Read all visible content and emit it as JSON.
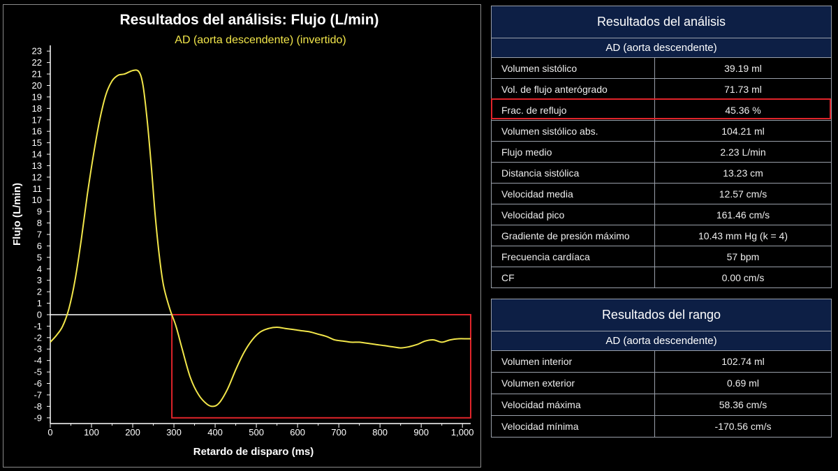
{
  "chart_data": {
    "type": "line",
    "title": "Resultados del análisis: Flujo (L/min)",
    "subtitle": "AD (aorta descendente) (invertido)",
    "xlabel": "Retardo de disparo (ms)",
    "ylabel": "Flujo (L/min)",
    "xlim": [
      0,
      1020
    ],
    "ylim": [
      -9.5,
      23.5
    ],
    "x_ticks": [
      0,
      100,
      200,
      300,
      400,
      500,
      600,
      700,
      800,
      900,
      1000
    ],
    "x_tick_labels": [
      "0",
      "100",
      "200",
      "300",
      "400",
      "500",
      "600",
      "700",
      "800",
      "900",
      "1,000"
    ],
    "y_ticks": [
      -9,
      -8,
      -7,
      -6,
      -5,
      -4,
      -3,
      -2,
      -1,
      0,
      1,
      2,
      3,
      4,
      5,
      6,
      7,
      8,
      9,
      10,
      11,
      12,
      13,
      14,
      15,
      16,
      17,
      18,
      19,
      20,
      21,
      22,
      23
    ],
    "y_tick_labels": [
      "-9",
      "-8",
      "-7",
      "-6",
      "-5",
      "-4",
      "-3",
      "-2",
      "-1",
      "0",
      "1",
      "2",
      "3",
      "4",
      "5",
      "6",
      "7",
      "8",
      "9",
      "10",
      "11",
      "12",
      "13",
      "14",
      "15",
      "16",
      "17",
      "18",
      "19",
      "20",
      "21",
      "22",
      "23"
    ],
    "baseline": {
      "x": [
        0,
        295
      ],
      "y": 0,
      "color": "#ffffff"
    },
    "highlight_box": {
      "x": [
        295,
        1020
      ],
      "y": [
        -9,
        0
      ],
      "color": "#e0242a"
    },
    "series": [
      {
        "color": "#f2e64a",
        "x": [
          0,
          15,
          30,
          45,
          60,
          75,
          90,
          105,
          120,
          135,
          150,
          165,
          180,
          200,
          215,
          225,
          235,
          245,
          255,
          265,
          275,
          290,
          305,
          320,
          340,
          360,
          380,
          395,
          410,
          430,
          450,
          470,
          490,
          510,
          530,
          550,
          570,
          590,
          610,
          630,
          650,
          670,
          690,
          710,
          730,
          750,
          770,
          790,
          810,
          830,
          850,
          870,
          890,
          910,
          930,
          950,
          970,
          990,
          1010,
          1020
        ],
        "y": [
          -2.4,
          -1.8,
          -1.0,
          0.5,
          3.0,
          6.5,
          10.5,
          14.0,
          17.0,
          19.2,
          20.4,
          20.9,
          21.0,
          21.3,
          21.2,
          20.0,
          17.0,
          13.0,
          8.5,
          5.0,
          2.5,
          0.5,
          -1.0,
          -3.0,
          -5.5,
          -7.0,
          -7.8,
          -8.0,
          -7.7,
          -6.5,
          -4.8,
          -3.3,
          -2.2,
          -1.5,
          -1.2,
          -1.1,
          -1.2,
          -1.3,
          -1.4,
          -1.5,
          -1.7,
          -1.9,
          -2.2,
          -2.3,
          -2.4,
          -2.4,
          -2.5,
          -2.6,
          -2.7,
          -2.8,
          -2.9,
          -2.8,
          -2.6,
          -2.3,
          -2.2,
          -2.4,
          -2.2,
          -2.1,
          -2.1,
          -2.1
        ]
      }
    ],
    "grid": false
  },
  "analysis": {
    "title": "Resultados del análisis",
    "subtitle": "AD (aorta descendente)",
    "rows": [
      {
        "label": "Volumen sistólico",
        "value": "39.19 ml"
      },
      {
        "label": "Vol. de flujo anterógrado",
        "value": "71.73 ml"
      },
      {
        "label": "Frac. de reflujo",
        "value": "45.36 %"
      },
      {
        "label": "Volumen sistólico abs.",
        "value": "104.21 ml"
      },
      {
        "label": "Flujo medio",
        "value": "2.23 L/min"
      },
      {
        "label": "Distancia sistólica",
        "value": "13.23 cm"
      },
      {
        "label": "Velocidad media",
        "value": "12.57 cm/s"
      },
      {
        "label": "Velocidad pico",
        "value": "161.46 cm/s"
      },
      {
        "label": "Gradiente de presión máximo",
        "value": "10.43 mm Hg (k = 4)"
      },
      {
        "label": "Frecuencia cardíaca",
        "value": "57 bpm"
      },
      {
        "label": "CF",
        "value": "0.00 cm/s"
      }
    ],
    "highlight_color": "#e0242a"
  },
  "range": {
    "title": "Resultados del rango",
    "subtitle": "AD (aorta descendente)",
    "rows": [
      {
        "label": "Volumen interior",
        "value": "102.74 ml"
      },
      {
        "label": "Volumen exterior",
        "value": "0.69 ml"
      },
      {
        "label": "Velocidad máxima",
        "value": "58.36 cm/s"
      },
      {
        "label": "Velocidad mínima",
        "value": "-170.56 cm/s"
      }
    ]
  }
}
